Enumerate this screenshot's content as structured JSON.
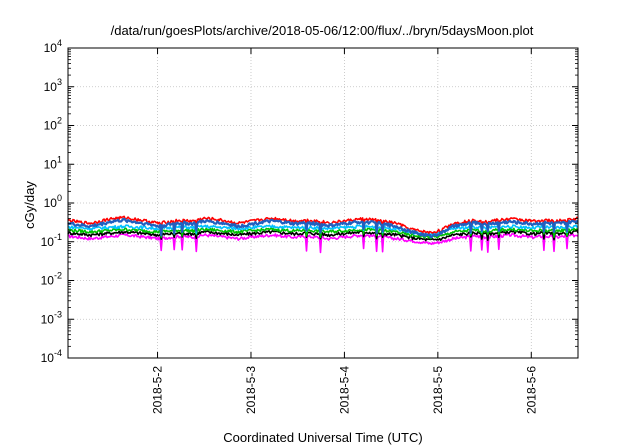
{
  "chart_data": {
    "type": "line",
    "title": "/data/run/goesPlots/archive/2018-05-06/12:00/flux/../bryn/5daysMoon.plot",
    "xlabel": "Coordinated Universal Time (UTC)",
    "ylabel": "cGy/day",
    "yscale": "log",
    "ylim": [
      0.0001,
      10000
    ],
    "xlim": [
      "2018-05-01T01:00",
      "2018-05-06T12:00"
    ],
    "y_ticks": [
      {
        "base": "10",
        "exp": "-4",
        "value": 0.0001
      },
      {
        "base": "10",
        "exp": "-3",
        "value": 0.001
      },
      {
        "base": "10",
        "exp": "-2",
        "value": 0.01
      },
      {
        "base": "10",
        "exp": "-1",
        "value": 0.1
      },
      {
        "base": "10",
        "exp": "0",
        "value": 1
      },
      {
        "base": "10",
        "exp": "1",
        "value": 10
      },
      {
        "base": "10",
        "exp": "2",
        "value": 100
      },
      {
        "base": "10",
        "exp": "3",
        "value": 1000
      },
      {
        "base": "10",
        "exp": "4",
        "value": 10000
      }
    ],
    "x_ticks": [
      {
        "label": "2018-5-2",
        "value": "2018-05-02T00:00"
      },
      {
        "label": "2018-5-3",
        "value": "2018-05-03T00:00"
      },
      {
        "label": "2018-5-4",
        "value": "2018-05-04T00:00"
      },
      {
        "label": "2018-5-5",
        "value": "2018-05-05T00:00"
      },
      {
        "label": "2018-5-6",
        "value": "2018-05-06T00:00"
      }
    ],
    "grid": true,
    "series": [
      {
        "color": "#ff00ff",
        "dip_factor": 0.45,
        "values": [
          0.14,
          0.13,
          0.12,
          0.13,
          0.14,
          0.15,
          0.14,
          0.13,
          0.12,
          0.13,
          0.14,
          0.13,
          0.15,
          0.14,
          0.13,
          0.12,
          0.13,
          0.14,
          0.15,
          0.14,
          0.13,
          0.14,
          0.13,
          0.12,
          0.13,
          0.14,
          0.15,
          0.14,
          0.13,
          0.12,
          0.11,
          0.1,
          0.09,
          0.1,
          0.12,
          0.13,
          0.14,
          0.13,
          0.14,
          0.15,
          0.14,
          0.13,
          0.14,
          0.13,
          0.14,
          0.15
        ]
      },
      {
        "color": "#000000",
        "dip_factor": 0.75,
        "values": [
          0.17,
          0.16,
          0.15,
          0.16,
          0.17,
          0.18,
          0.17,
          0.16,
          0.15,
          0.16,
          0.17,
          0.16,
          0.18,
          0.17,
          0.16,
          0.15,
          0.16,
          0.17,
          0.18,
          0.17,
          0.16,
          0.17,
          0.16,
          0.15,
          0.16,
          0.17,
          0.18,
          0.17,
          0.16,
          0.15,
          0.13,
          0.12,
          0.11,
          0.12,
          0.15,
          0.16,
          0.17,
          0.16,
          0.17,
          0.18,
          0.17,
          0.16,
          0.17,
          0.16,
          0.17,
          0.18
        ]
      },
      {
        "color": "#00c000",
        "dip_factor": 0.75,
        "values": [
          0.2,
          0.19,
          0.18,
          0.19,
          0.2,
          0.21,
          0.2,
          0.19,
          0.18,
          0.19,
          0.2,
          0.19,
          0.21,
          0.2,
          0.19,
          0.18,
          0.19,
          0.2,
          0.21,
          0.2,
          0.19,
          0.2,
          0.19,
          0.18,
          0.19,
          0.2,
          0.21,
          0.2,
          0.19,
          0.18,
          0.15,
          0.14,
          0.13,
          0.14,
          0.18,
          0.19,
          0.2,
          0.19,
          0.2,
          0.21,
          0.2,
          0.19,
          0.2,
          0.19,
          0.2,
          0.21
        ]
      },
      {
        "color": "#00c0ff",
        "dip_factor": 0.75,
        "values": [
          0.24,
          0.23,
          0.22,
          0.23,
          0.24,
          0.25,
          0.24,
          0.23,
          0.22,
          0.23,
          0.24,
          0.23,
          0.25,
          0.24,
          0.23,
          0.22,
          0.23,
          0.24,
          0.25,
          0.24,
          0.23,
          0.24,
          0.23,
          0.22,
          0.23,
          0.24,
          0.25,
          0.24,
          0.23,
          0.22,
          0.18,
          0.16,
          0.15,
          0.17,
          0.22,
          0.23,
          0.24,
          0.23,
          0.24,
          0.25,
          0.24,
          0.23,
          0.24,
          0.23,
          0.24,
          0.25
        ]
      },
      {
        "color": "#ff0000",
        "dip_factor": 0.75,
        "values": [
          0.36,
          0.32,
          0.3,
          0.35,
          0.4,
          0.42,
          0.38,
          0.34,
          0.3,
          0.33,
          0.36,
          0.34,
          0.4,
          0.38,
          0.34,
          0.3,
          0.33,
          0.37,
          0.4,
          0.38,
          0.34,
          0.36,
          0.34,
          0.31,
          0.33,
          0.36,
          0.39,
          0.37,
          0.33,
          0.3,
          0.22,
          0.19,
          0.17,
          0.2,
          0.3,
          0.33,
          0.36,
          0.34,
          0.36,
          0.39,
          0.37,
          0.34,
          0.36,
          0.34,
          0.36,
          0.4
        ]
      },
      {
        "color": "#2060c0",
        "dip_factor": 0.6,
        "values": [
          0.3,
          0.27,
          0.25,
          0.29,
          0.34,
          0.36,
          0.32,
          0.29,
          0.25,
          0.28,
          0.31,
          0.29,
          0.34,
          0.32,
          0.29,
          0.25,
          0.28,
          0.32,
          0.34,
          0.32,
          0.29,
          0.31,
          0.29,
          0.26,
          0.28,
          0.31,
          0.33,
          0.31,
          0.28,
          0.25,
          0.19,
          0.16,
          0.14,
          0.17,
          0.25,
          0.28,
          0.31,
          0.29,
          0.31,
          0.33,
          0.31,
          0.29,
          0.31,
          0.29,
          0.31,
          0.34
        ]
      }
    ]
  }
}
